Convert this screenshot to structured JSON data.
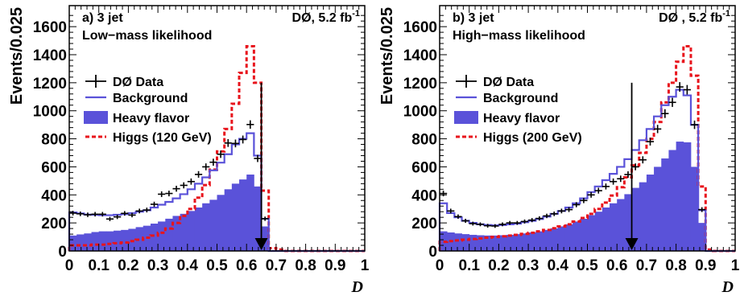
{
  "chart_data": [
    {
      "type": "histogram",
      "panel_label": "a) 3 jet",
      "subtitle": "Low−mass likelihood",
      "experiment": "DØ, 5.2 fb",
      "lumi_exponent": "-1",
      "xlabel": "D",
      "ylabel": "Events/0.025",
      "xlim": [
        0,
        1
      ],
      "ylim": [
        0,
        1750
      ],
      "bin_width": 0.025,
      "xticks": [
        "0",
        "0.1",
        "0.2",
        "0.3",
        "0.4",
        "0.5",
        "0.6",
        "0.7",
        "0.8",
        "0.9",
        "1"
      ],
      "yticks": [
        "0",
        "200",
        "400",
        "600",
        "800",
        "1000",
        "1200",
        "1400",
        "1600"
      ],
      "cut_value": 0.65,
      "legend": [
        "DØ Data",
        "Background",
        "Heavy flavor",
        "Higgs (120 GeV)"
      ],
      "series": [
        {
          "name": "DØ Data",
          "values": [
            270,
            265,
            258,
            262,
            262,
            228,
            243,
            268,
            256,
            285,
            292,
            333,
            405,
            410,
            444,
            468,
            495,
            546,
            600,
            633,
            690,
            770,
            767,
            795,
            902,
            660,
            230,
            0,
            0,
            0,
            0,
            0,
            0,
            0,
            0,
            0,
            0,
            0,
            0,
            0
          ]
        },
        {
          "name": "Background",
          "values": [
            275,
            268,
            260,
            258,
            255,
            255,
            258,
            262,
            270,
            280,
            290,
            310,
            330,
            350,
            375,
            405,
            440,
            480,
            525,
            575,
            630,
            690,
            760,
            800,
            840,
            680,
            230,
            0,
            0,
            0,
            0,
            0,
            0,
            0,
            0,
            0,
            0,
            0,
            0,
            0
          ]
        },
        {
          "name": "Heavy flavor",
          "values": [
            110,
            118,
            125,
            135,
            140,
            140,
            145,
            150,
            158,
            170,
            180,
            195,
            210,
            230,
            250,
            265,
            285,
            310,
            340,
            365,
            400,
            440,
            480,
            510,
            545,
            460,
            175,
            0,
            0,
            0,
            0,
            0,
            0,
            0,
            0,
            0,
            0,
            0,
            0,
            0
          ]
        },
        {
          "name": "Higgs (120 GeV)",
          "values": [
            40,
            40,
            40,
            45,
            45,
            50,
            55,
            60,
            70,
            80,
            95,
            110,
            130,
            160,
            200,
            250,
            300,
            380,
            470,
            580,
            710,
            870,
            1050,
            1270,
            1460,
            1200,
            430,
            20,
            10,
            0,
            0,
            0,
            0,
            0,
            0,
            0,
            0,
            0,
            0,
            0
          ]
        }
      ]
    },
    {
      "type": "histogram",
      "panel_label": "b) 3 jet",
      "subtitle": "High−mass likelihood",
      "experiment": "DØ , 5.2 fb",
      "lumi_exponent": "-1",
      "xlabel": "D",
      "ylabel": "Events/0.025",
      "xlim": [
        0,
        1
      ],
      "ylim": [
        0,
        1750
      ],
      "bin_width": 0.025,
      "xticks": [
        "0",
        "0.1",
        "0.2",
        "0.3",
        "0.4",
        "0.5",
        "0.6",
        "0.7",
        "0.8",
        "0.9",
        "1"
      ],
      "yticks": [
        "0",
        "200",
        "400",
        "600",
        "800",
        "1000",
        "1200",
        "1400",
        "1600"
      ],
      "cut_value": 0.65,
      "legend": [
        "DØ Data",
        "Background",
        "Heavy flavor",
        "Higgs (200 GeV)"
      ],
      "series": [
        {
          "name": "DØ Data",
          "values": [
            410,
            285,
            245,
            215,
            195,
            190,
            180,
            178,
            190,
            200,
            200,
            210,
            220,
            232,
            250,
            265,
            285,
            295,
            330,
            360,
            400,
            430,
            460,
            495,
            515,
            545,
            600,
            650,
            780,
            870,
            980,
            1060,
            1170,
            1150,
            900,
            295,
            0,
            0,
            0,
            0
          ]
        },
        {
          "name": "Background",
          "values": [
            340,
            270,
            240,
            215,
            200,
            190,
            185,
            182,
            185,
            190,
            195,
            205,
            215,
            228,
            245,
            265,
            285,
            310,
            340,
            375,
            420,
            460,
            505,
            550,
            600,
            655,
            720,
            790,
            870,
            960,
            1040,
            1100,
            1150,
            1110,
            900,
            290,
            0,
            0,
            0,
            0
          ]
        },
        {
          "name": "Heavy flavor",
          "values": [
            140,
            132,
            125,
            120,
            115,
            112,
            110,
            110,
            112,
            115,
            120,
            125,
            132,
            140,
            150,
            162,
            175,
            190,
            210,
            230,
            255,
            280,
            310,
            340,
            370,
            405,
            450,
            490,
            545,
            600,
            660,
            720,
            780,
            775,
            600,
            200,
            0,
            0,
            0,
            0
          ]
        },
        {
          "name": "Higgs (200 GeV)",
          "values": [
            65,
            70,
            75,
            80,
            85,
            90,
            95,
            100,
            105,
            110,
            115,
            122,
            130,
            140,
            150,
            162,
            175,
            190,
            210,
            235,
            265,
            300,
            345,
            395,
            455,
            525,
            610,
            700,
            800,
            920,
            1060,
            1200,
            1350,
            1460,
            1250,
            460,
            10,
            0,
            0,
            0
          ]
        }
      ]
    }
  ]
}
